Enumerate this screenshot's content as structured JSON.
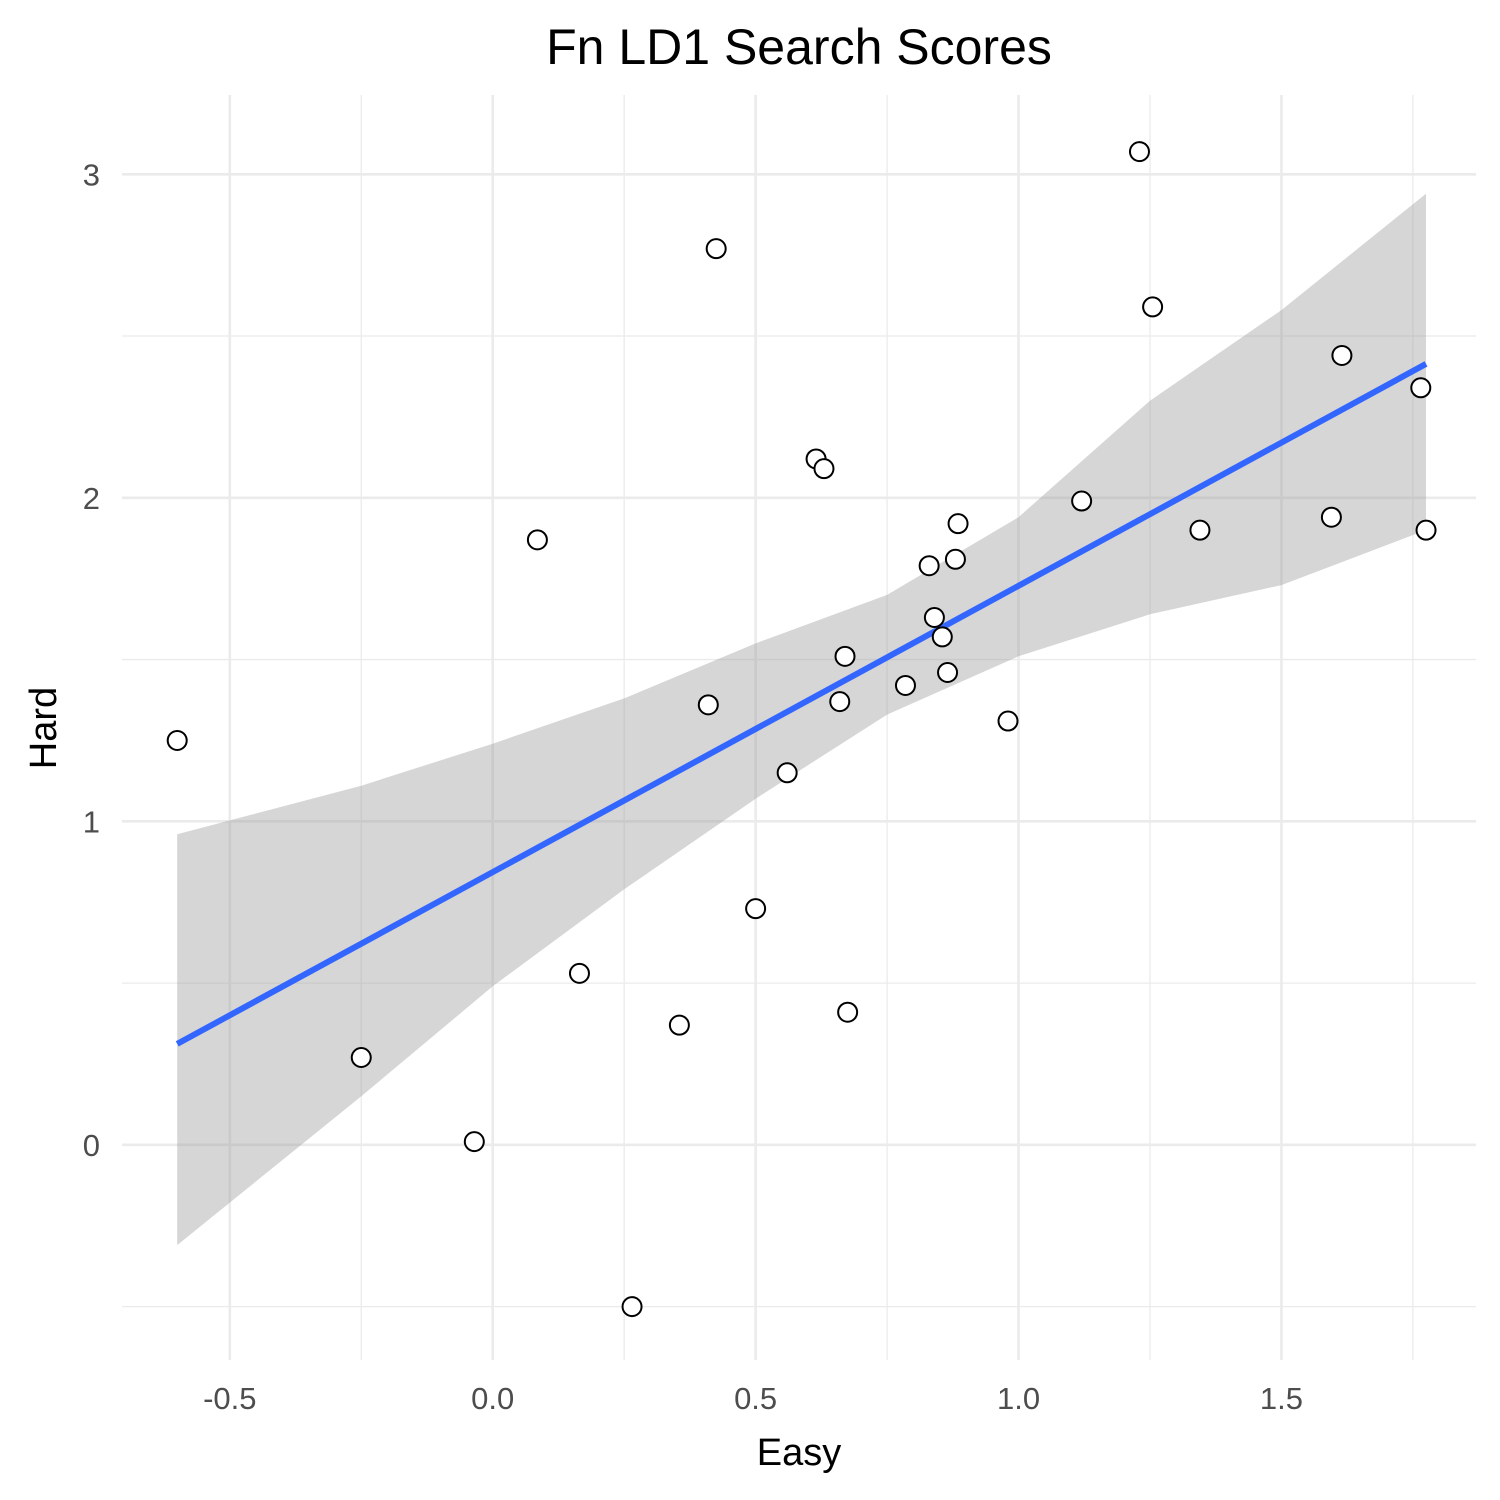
{
  "chart_data": {
    "type": "scatter",
    "title": "Fn LD1 Search Scores",
    "xlabel": "Easy",
    "ylabel": "Hard",
    "xlim": [
      -0.705,
      1.87
    ],
    "ylim": [
      -0.665,
      3.245
    ],
    "x_ticks": [
      -0.5,
      0.0,
      0.5,
      1.0,
      1.5
    ],
    "x_tick_labels": [
      "-0.5",
      "0.0",
      "0.5",
      "1.0",
      "1.5"
    ],
    "x_minor_ticks": [
      -0.25,
      0.25,
      0.75,
      1.25,
      1.75
    ],
    "y_ticks": [
      0,
      1,
      2,
      3
    ],
    "y_tick_labels": [
      "0",
      "1",
      "2",
      "3"
    ],
    "y_minor_ticks": [
      -0.5,
      0.5,
      1.5,
      2.5
    ],
    "grid": true,
    "points": [
      {
        "x": -0.6,
        "y": 1.25
      },
      {
        "x": -0.25,
        "y": 0.27
      },
      {
        "x": -0.035,
        "y": 0.01
      },
      {
        "x": 0.085,
        "y": 1.87
      },
      {
        "x": 0.165,
        "y": 0.53
      },
      {
        "x": 0.265,
        "y": -0.5
      },
      {
        "x": 0.355,
        "y": 0.37
      },
      {
        "x": 0.41,
        "y": 1.36
      },
      {
        "x": 0.425,
        "y": 2.77
      },
      {
        "x": 0.5,
        "y": 0.73
      },
      {
        "x": 0.56,
        "y": 1.15
      },
      {
        "x": 0.615,
        "y": 2.12
      },
      {
        "x": 0.63,
        "y": 2.09
      },
      {
        "x": 0.66,
        "y": 1.37
      },
      {
        "x": 0.67,
        "y": 1.51
      },
      {
        "x": 0.675,
        "y": 0.41
      },
      {
        "x": 0.785,
        "y": 1.42
      },
      {
        "x": 0.83,
        "y": 1.79
      },
      {
        "x": 0.84,
        "y": 1.63
      },
      {
        "x": 0.855,
        "y": 1.57
      },
      {
        "x": 0.865,
        "y": 1.46
      },
      {
        "x": 0.88,
        "y": 1.81
      },
      {
        "x": 0.885,
        "y": 1.92
      },
      {
        "x": 0.98,
        "y": 1.31
      },
      {
        "x": 1.12,
        "y": 1.99
      },
      {
        "x": 1.23,
        "y": 3.07
      },
      {
        "x": 1.255,
        "y": 2.59
      },
      {
        "x": 1.345,
        "y": 1.9
      },
      {
        "x": 1.595,
        "y": 1.94
      },
      {
        "x": 1.615,
        "y": 2.44
      },
      {
        "x": 1.765,
        "y": 2.34
      },
      {
        "x": 1.775,
        "y": 1.9
      }
    ],
    "trend": {
      "type": "linear",
      "x_range": [
        -0.6,
        1.775
      ],
      "intercept": 0.843,
      "slope": 0.885,
      "color": "#3366FF"
    },
    "confidence_band": {
      "color": "#999999",
      "opacity": 0.4,
      "points": [
        {
          "x": -0.6,
          "lower": -0.31,
          "upper": 0.96
        },
        {
          "x": -0.25,
          "lower": 0.15,
          "upper": 1.11
        },
        {
          "x": 0.0,
          "lower": 0.49,
          "upper": 1.24
        },
        {
          "x": 0.25,
          "lower": 0.79,
          "upper": 1.38
        },
        {
          "x": 0.5,
          "lower": 1.07,
          "upper": 1.55
        },
        {
          "x": 0.75,
          "lower": 1.33,
          "upper": 1.7
        },
        {
          "x": 1.0,
          "lower": 1.51,
          "upper": 1.94
        },
        {
          "x": 1.25,
          "lower": 1.64,
          "upper": 2.3
        },
        {
          "x": 1.5,
          "lower": 1.73,
          "upper": 2.58
        },
        {
          "x": 1.775,
          "lower": 1.9,
          "upper": 2.94
        }
      ]
    },
    "point_style": {
      "shape": "open-circle",
      "stroke": "#000000",
      "fill": "#ffffff"
    }
  }
}
